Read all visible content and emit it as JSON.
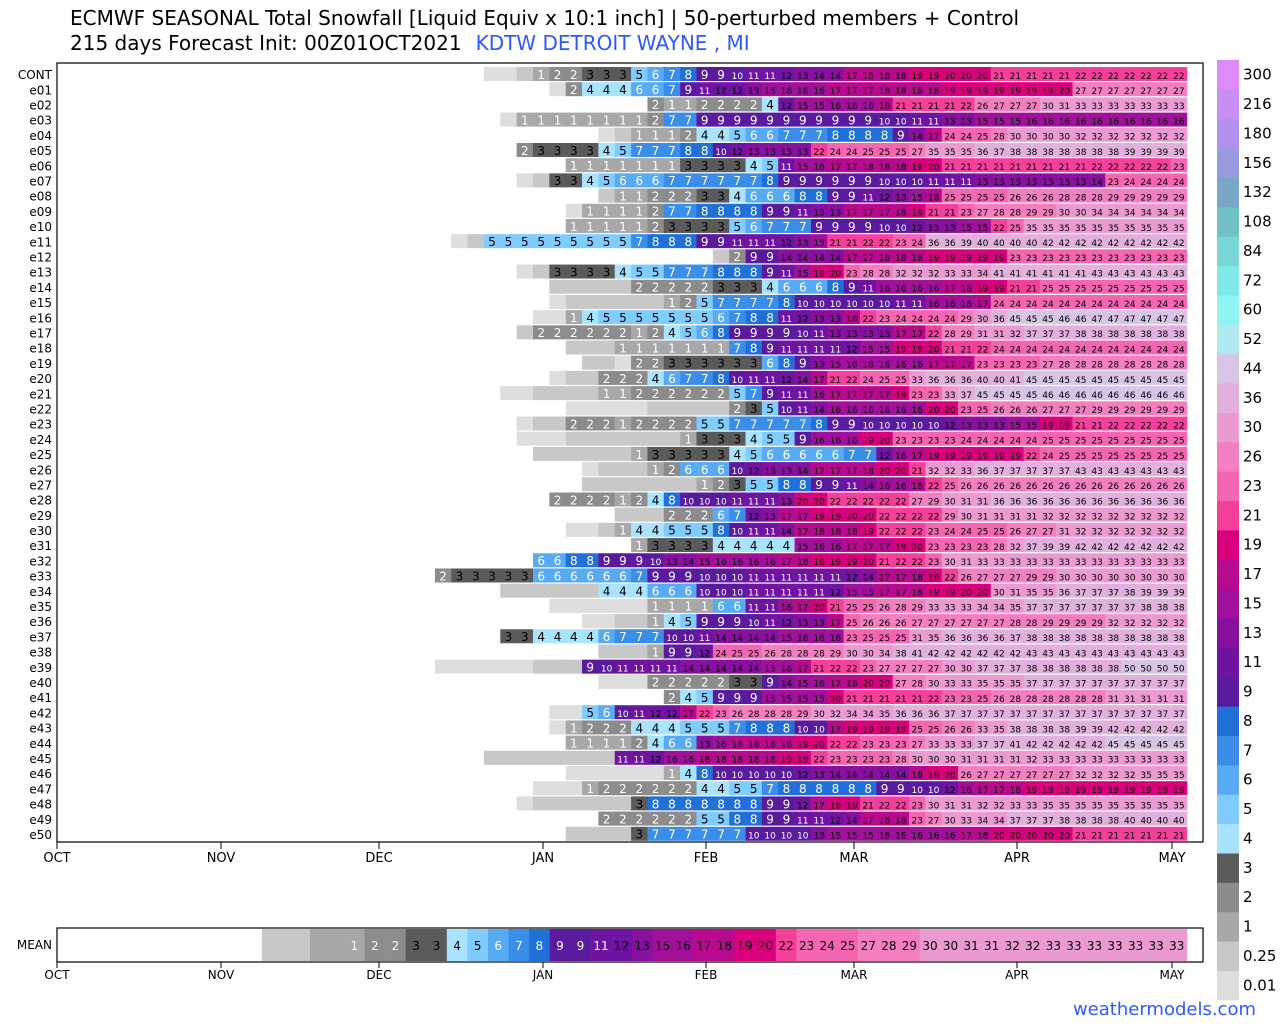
{
  "header": {
    "title_line1": "ECMWF SEASONAL Total Snowfall [Liquid Equiv x 10:1 inch] | 50-perturbed members + Control",
    "title_line2_prefix": "215 days Forecast Init: 00Z01OCT2021",
    "station": "KDTW DETROIT WAYNE  , MI"
  },
  "footer": {
    "site": "weathermodels.com"
  },
  "chart_data": {
    "type": "heatmap",
    "x_axis_ticks": [
      "OCT",
      "NOV",
      "DEC",
      "JAN",
      "FEB",
      "MAR",
      "APR",
      "MAY"
    ],
    "colorbar": {
      "levels": [
        "0.01",
        "0.25",
        "1",
        "2",
        "3",
        "4",
        "5",
        "6",
        "7",
        "8",
        "9",
        "11",
        "13",
        "15",
        "17",
        "19",
        "21",
        "23",
        "26",
        "30",
        "36",
        "44",
        "52",
        "60",
        "72",
        "84",
        "108",
        "132",
        "156",
        "180",
        "216",
        "300"
      ],
      "colors": [
        "#dedede",
        "#c8c8c8",
        "#a8a8a8",
        "#8c8c8c",
        "#6e6e6e",
        "#5a5a5a",
        "#a8e4ff",
        "#80ccff",
        "#58aaf2",
        "#3a8ee8",
        "#2070d8",
        "#4a1494",
        "#5a1a9e",
        "#6e14a0",
        "#88109e",
        "#a0109a",
        "#b80a8e",
        "#d8007c",
        "#ee1078",
        "#f4409a",
        "#f566b2",
        "#f37fc0",
        "#ec9ad2",
        "#e2b0dc",
        "#d8c4e4",
        "#c4dcee",
        "#b0e8f0",
        "#90f4f4",
        "#80eaea",
        "#7ad6d6",
        "#70c0c4",
        "#7aa6c6",
        "#86a0d0",
        "#9a9ae0",
        "#b292ee",
        "#c890f6",
        "#dc8cfa"
      ]
    },
    "mean_row": {
      "label": "MEAN",
      "cells": [
        "",
        "",
        "",
        "",
        "",
        "",
        "",
        "",
        "",
        "",
        "",
        "",
        "",
        "",
        "",
        "",
        "",
        "",
        "",
        "",
        "",
        "",
        "",
        "",
        "",
        "",
        "",
        "",
        "",
        "",
        "",
        "",
        "",
        "",
        "",
        "",
        "",
        "",
        "",
        "",
        "",
        "",
        "",
        "",
        "",
        "",
        "",
        "",
        "",
        "",
        "1",
        "2",
        "2",
        "3",
        "3",
        "4",
        "5",
        "6",
        "7",
        "8",
        "9",
        "9",
        "11",
        "12",
        "13",
        "15",
        "16",
        "17",
        "18",
        "19",
        "20",
        "22",
        "23",
        "24",
        "25",
        "27",
        "28",
        "29",
        "30",
        "30",
        "31",
        "31",
        "32",
        "32",
        "33",
        "33",
        "33",
        "33",
        "33",
        "33",
        "33"
      ]
    },
    "members": [
      {
        "name": "CONT",
        "cells": [
          "",
          "",
          "",
          "",
          "",
          "",
          "",
          "",
          "",
          "",
          "0",
          "0",
          "0.25",
          "1",
          "2",
          "2",
          "3",
          "3",
          "3",
          "5",
          "6",
          "7",
          "8",
          "9",
          "9",
          "10",
          "11",
          "11",
          "12",
          "13",
          "14",
          "14",
          "17",
          "18",
          "18",
          "18",
          "19",
          "19",
          "20",
          "20",
          "20",
          "21",
          "21",
          "21",
          "21",
          "21",
          "22",
          "22",
          "22",
          "22",
          "22",
          "22",
          "22"
        ]
      },
      {
        "name": "e01",
        "cells": [
          "",
          "",
          "",
          "",
          "",
          "",
          "",
          "",
          "",
          "",
          "",
          "",
          "",
          "",
          "",
          "",
          "",
          "",
          "",
          "",
          "",
          "",
          "",
          "",
          "",
          "",
          "",
          "",
          "",
          "",
          "",
          "",
          "",
          "",
          "",
          "",
          "",
          "",
          "",
          "",
          "",
          "",
          "",
          "",
          "",
          "",
          "",
          "",
          "",
          "",
          "",
          "",
          "",
          ""
        ]
      },
      {
        "name": "e02",
        "cells": []
      },
      {
        "name": "e03",
        "cells": []
      },
      {
        "name": "e04",
        "cells": []
      },
      {
        "name": "e05",
        "cells": []
      },
      {
        "name": "e06",
        "cells": []
      },
      {
        "name": "e07",
        "cells": []
      },
      {
        "name": "e08",
        "cells": []
      },
      {
        "name": "e09",
        "cells": []
      },
      {
        "name": "e10",
        "cells": []
      },
      {
        "name": "e11",
        "cells": []
      },
      {
        "name": "e12",
        "cells": []
      },
      {
        "name": "e13",
        "cells": []
      },
      {
        "name": "e14",
        "cells": []
      },
      {
        "name": "e15",
        "cells": []
      },
      {
        "name": "e16",
        "cells": []
      },
      {
        "name": "e17",
        "cells": []
      },
      {
        "name": "e18",
        "cells": []
      },
      {
        "name": "e19",
        "cells": []
      },
      {
        "name": "e20",
        "cells": []
      },
      {
        "name": "e21",
        "cells": []
      },
      {
        "name": "e22",
        "cells": []
      },
      {
        "name": "e23",
        "cells": []
      },
      {
        "name": "e24",
        "cells": []
      },
      {
        "name": "e25",
        "cells": []
      },
      {
        "name": "e26",
        "cells": []
      },
      {
        "name": "e27",
        "cells": []
      },
      {
        "name": "e28",
        "cells": []
      },
      {
        "name": "e29",
        "cells": []
      },
      {
        "name": "e30",
        "cells": []
      },
      {
        "name": "e31",
        "cells": []
      },
      {
        "name": "e32",
        "cells": []
      },
      {
        "name": "e33",
        "cells": []
      },
      {
        "name": "e34",
        "cells": []
      },
      {
        "name": "e35",
        "cells": []
      },
      {
        "name": "e36",
        "cells": []
      },
      {
        "name": "e37",
        "cells": []
      },
      {
        "name": "e38",
        "cells": []
      },
      {
        "name": "e39",
        "cells": []
      },
      {
        "name": "e40",
        "cells": []
      },
      {
        "name": "e41",
        "cells": []
      },
      {
        "name": "e42",
        "cells": []
      },
      {
        "name": "e43",
        "cells": []
      },
      {
        "name": "e44",
        "cells": []
      },
      {
        "name": "e45",
        "cells": []
      },
      {
        "name": "e46",
        "cells": []
      },
      {
        "name": "e47",
        "cells": []
      },
      {
        "name": "e48",
        "cells": []
      },
      {
        "name": "e49",
        "cells": []
      },
      {
        "name": "e50",
        "cells": []
      }
    ]
  }
}
